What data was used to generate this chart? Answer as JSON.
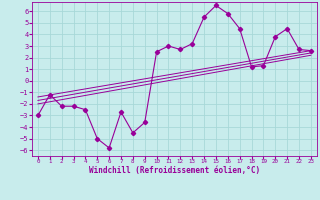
{
  "xlabel": "Windchill (Refroidissement éolien,°C)",
  "bg_color": "#c8ecec",
  "grid_color": "#a8d8d8",
  "line_color": "#990099",
  "xlim": [
    -0.5,
    23.5
  ],
  "ylim": [
    -6.5,
    6.8
  ],
  "xticks": [
    0,
    1,
    2,
    3,
    4,
    5,
    6,
    7,
    8,
    9,
    10,
    11,
    12,
    13,
    14,
    15,
    16,
    17,
    18,
    19,
    20,
    21,
    22,
    23
  ],
  "yticks": [
    -6,
    -5,
    -4,
    -3,
    -2,
    -1,
    0,
    1,
    2,
    3,
    4,
    5,
    6
  ],
  "data_x": [
    0,
    1,
    2,
    3,
    4,
    5,
    6,
    7,
    8,
    9,
    10,
    11,
    12,
    13,
    14,
    15,
    16,
    17,
    18,
    19,
    20,
    21,
    22,
    23
  ],
  "data_y": [
    -3.0,
    -1.2,
    -2.2,
    -2.2,
    -2.5,
    -5.0,
    -5.8,
    -2.7,
    -4.5,
    -3.6,
    2.5,
    3.0,
    2.7,
    3.2,
    5.5,
    6.5,
    5.8,
    4.5,
    1.2,
    1.3,
    3.8,
    4.5,
    2.7,
    2.6
  ],
  "trend1_x": [
    0,
    23
  ],
  "trend1_y": [
    -1.4,
    2.6
  ],
  "trend2_x": [
    0,
    23
  ],
  "trend2_y": [
    -1.7,
    2.4
  ],
  "trend3_x": [
    0,
    23
  ],
  "trend3_y": [
    -2.0,
    2.2
  ]
}
